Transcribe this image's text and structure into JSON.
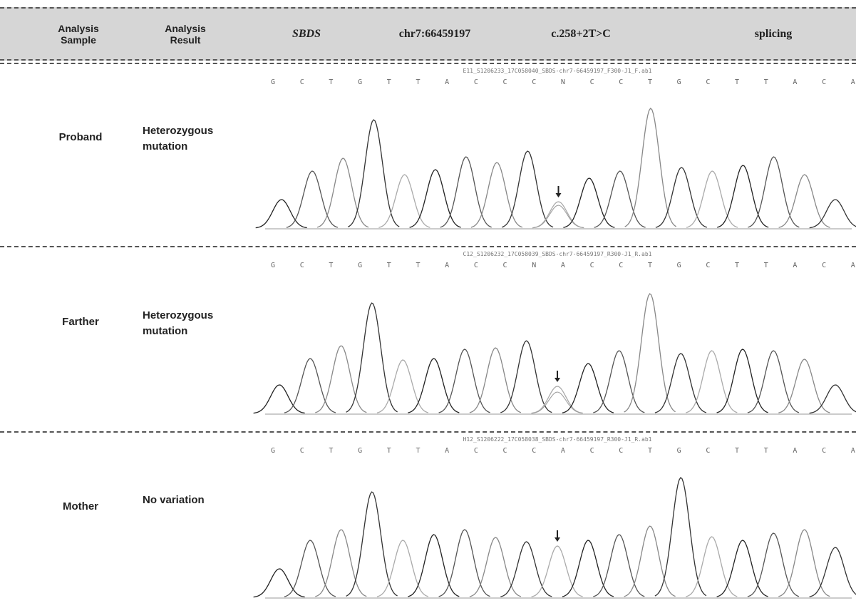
{
  "header": {
    "sample_label": "Analysis Sample",
    "result_label": "Analysis Result",
    "gene": "SBDS",
    "position": "chr7:66459197",
    "variant": "c.258+2T>C",
    "effect": "splicing"
  },
  "rows": [
    {
      "sample": "Proband",
      "result": "Heterozygous mutation",
      "file": "E11_S1206233_17C058040_SBDS-chr7-66459197_F300-J1_F.ab1",
      "bases": [
        "G",
        "C",
        "T",
        "G",
        "T",
        "T",
        "A",
        "C",
        "C",
        "C",
        "N",
        "C",
        "C",
        "T",
        "G",
        "C",
        "T",
        "T",
        "A",
        "C",
        "A"
      ]
    },
    {
      "sample": "Farther",
      "result": "Heterozygous mutation",
      "file": "C12_S1206232_17C058039_SBDS-chr7-66459197_R300-J1_R.ab1",
      "bases": [
        "G",
        "C",
        "T",
        "G",
        "T",
        "T",
        "A",
        "C",
        "C",
        "N",
        "A",
        "C",
        "C",
        "T",
        "G",
        "C",
        "T",
        "T",
        "A",
        "C",
        "A"
      ]
    },
    {
      "sample": "Mother",
      "result": "No variation",
      "file": "H12_S1206222_17C058038_SBDS-chr7-66459197_R300-J1_R.ab1",
      "bases": [
        "G",
        "C",
        "T",
        "G",
        "T",
        "T",
        "A",
        "C",
        "C",
        "C",
        "A",
        "C",
        "C",
        "T",
        "G",
        "C",
        "T",
        "T",
        "A",
        "C",
        "A"
      ]
    }
  ]
}
